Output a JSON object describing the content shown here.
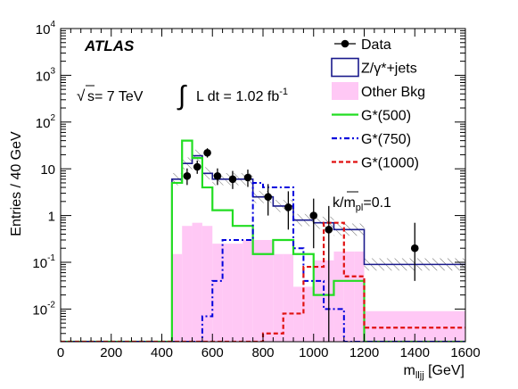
{
  "chart_data": {
    "type": "histogram",
    "title": "",
    "xlabel": "m_lljj [GeV]",
    "xlabel_main": "m",
    "xlabel_sub": "lljj",
    "xlabel_unit": " [GeV]",
    "ylabel": "Entries / 40 GeV",
    "xlim": [
      0,
      1600
    ],
    "ylim": [
      0.002,
      10000
    ],
    "yscale": "log",
    "grid": false,
    "legend_position": "top-right",
    "x_ticks": [
      "0",
      "200",
      "400",
      "600",
      "800",
      "1000",
      "1200",
      "1400",
      "1600"
    ],
    "y_ticks": [
      {
        "base": "10",
        "exp": "-2",
        "value": 0.01
      },
      {
        "base": "10",
        "exp": "-1",
        "value": 0.1
      },
      {
        "base": "1",
        "exp": "",
        "value": 1
      },
      {
        "base": "10",
        "exp": "",
        "value": 10
      },
      {
        "base": "10",
        "exp": "2",
        "value": 100
      },
      {
        "base": "10",
        "exp": "3",
        "value": 1000
      },
      {
        "base": "10",
        "exp": "4",
        "value": 10000
      }
    ],
    "annotations": {
      "experiment": "ATLAS",
      "sqrt_symbol": "√",
      "energy": "s= 7 TeV",
      "integral_symbol": "∫",
      "lumi_text": "L dt = 1.02 fb",
      "lumi_exp": "-1",
      "coupling_text": "k/",
      "coupling_mbar": "m",
      "coupling_sub": "pl",
      "coupling_value": "=0.1"
    },
    "legend": [
      {
        "label": "Data",
        "style": "marker"
      },
      {
        "label": "Z/γ*+jets",
        "style": "box"
      },
      {
        "label": "Other Bkg",
        "style": "fill"
      },
      {
        "label": "G*(500)",
        "style": "solid"
      },
      {
        "label": "G*(750)",
        "style": "dashdot"
      },
      {
        "label": "G*(1000)",
        "style": "dashed"
      }
    ],
    "bin_edges": [
      0,
      440,
      480,
      520,
      560,
      600,
      640,
      680,
      720,
      760,
      800,
      840,
      880,
      920,
      960,
      1000,
      1040,
      1080,
      1120,
      1160,
      1200,
      1600
    ],
    "series": [
      {
        "name": "Z/γ*+jets",
        "color": "#1a1a8c",
        "values": [
          0.002,
          6,
          13,
          19,
          8,
          6,
          6,
          6,
          6,
          2.5,
          2.5,
          1.6,
          1.6,
          0.8,
          0.8,
          0.7,
          0.7,
          0.5,
          0.5,
          0.5,
          0.09
        ]
      },
      {
        "name": "Other Bkg",
        "color": "#ffc8f5",
        "values": [
          0.002,
          0.15,
          0.6,
          0.7,
          0.6,
          0.25,
          0.25,
          0.25,
          0.3,
          0.3,
          0.3,
          0.15,
          0.15,
          0.03,
          0.03,
          0.11,
          0.11,
          0.17,
          0.17,
          0.17,
          0.009
        ]
      },
      {
        "name": "G*(500)",
        "color": "#22dd22",
        "values": [
          0.002,
          5,
          40,
          17,
          4,
          1.3,
          1.3,
          0.6,
          0.6,
          0.15,
          0.15,
          0.3,
          0.3,
          0.15,
          0.15,
          0.02,
          0.02,
          0.04,
          0.04,
          0.04,
          0.002
        ]
      },
      {
        "name": "G*(750)",
        "color": "#0000dd",
        "values": [
          0.002,
          0.002,
          0.002,
          0.002,
          0.007,
          0.04,
          0.3,
          0.3,
          0.3,
          5,
          4,
          4,
          4,
          0.2,
          0.04,
          0.04,
          0.01,
          0.01,
          0.002,
          0.002,
          0.002
        ]
      },
      {
        "name": "G*(1000)",
        "color": "#e01010",
        "values": [
          0.002,
          0.002,
          0.002,
          0.002,
          0.002,
          0.002,
          0.002,
          0.002,
          0.002,
          0.002,
          0.003,
          0.003,
          0.008,
          0.008,
          0.08,
          0.08,
          0.7,
          0.7,
          0.05,
          0.05,
          0.004
        ]
      }
    ],
    "data_points": [
      {
        "x": 500,
        "y": 7,
        "yerr_low": 2.5,
        "yerr_high": 3.2
      },
      {
        "x": 540,
        "y": 11,
        "yerr_low": 3.2,
        "yerr_high": 4.0
      },
      {
        "x": 580,
        "y": 22,
        "yerr_low": 4.6,
        "yerr_high": 5.5
      },
      {
        "x": 620,
        "y": 7,
        "yerr_low": 2.5,
        "yerr_high": 3.2
      },
      {
        "x": 680,
        "y": 6,
        "yerr_low": 2.3,
        "yerr_high": 3.0
      },
      {
        "x": 740,
        "y": 6.5,
        "yerr_low": 2.4,
        "yerr_high": 3.1
      },
      {
        "x": 820,
        "y": 2.5,
        "yerr_low": 1.5,
        "yerr_high": 2.2
      },
      {
        "x": 900,
        "y": 1.5,
        "yerr_low": 1.0,
        "yerr_high": 1.8
      },
      {
        "x": 1000,
        "y": 1,
        "yerr_low": 0.8,
        "yerr_high": 1.3
      },
      {
        "x": 1060,
        "y": 0.5,
        "yerr_low": 0.5,
        "yerr_high": 1.1
      },
      {
        "x": 1400,
        "y": 0.2,
        "yerr_low": 0.16,
        "yerr_high": 0.5
      }
    ]
  }
}
